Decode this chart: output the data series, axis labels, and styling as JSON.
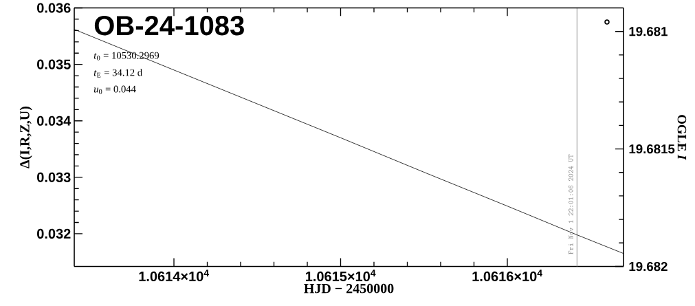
{
  "chart_data": {
    "type": "line",
    "title": "OB-24-1083",
    "xlabel": "HJD − 2450000",
    "ylabel": "Δ(I,R,Z,U)",
    "y2label": "OGLE *I*",
    "annotations": [
      "*t*$_{0}$ = 10530.2969",
      "*t*$_{E}$ = 34.12 d",
      "*u*$_{0}$ = 0.044",
      {
        "text": "Fri Nov 1 22:01:06 2024 UT",
        "x": 10616.418
      }
    ],
    "xlim": [
      10613.402,
      10616.697
    ],
    "ylim": [
      0.03142,
      0.036
    ],
    "y2lim": [
      19.682,
      19.6809
    ],
    "xticks": [
      {
        "value": 10614,
        "label": "1.0614×10$^{4}$"
      },
      {
        "value": 10615,
        "label": "1.0615×10$^{4}$"
      },
      {
        "value": 10616,
        "label": "1.0616×10$^{4}$"
      }
    ],
    "yticks": [
      0.032,
      0.033,
      0.034,
      0.035,
      0.036
    ],
    "y2ticks": [
      19.681,
      19.6815,
      19.682
    ],
    "series": [
      {
        "color": "#000000",
        "x": [
          10613.402,
          10614.0,
          10614.5,
          10615.0,
          10615.5,
          10616.0,
          10616.418,
          10616.697
        ],
        "values": [
          0.03562,
          0.0349,
          0.0343,
          0.0337,
          0.03309,
          0.03249,
          0.03198,
          0.03165
        ]
      },
      {
        "type": "scatter",
        "axis": "y2",
        "marker": "circle",
        "color": "#000000",
        "x": [
          10616.598
        ],
        "values": [
          19.68096
        ]
      }
    ],
    "ref_lines": [
      {
        "axis": "x",
        "value": 10616.418,
        "color": "#999999"
      }
    ]
  }
}
